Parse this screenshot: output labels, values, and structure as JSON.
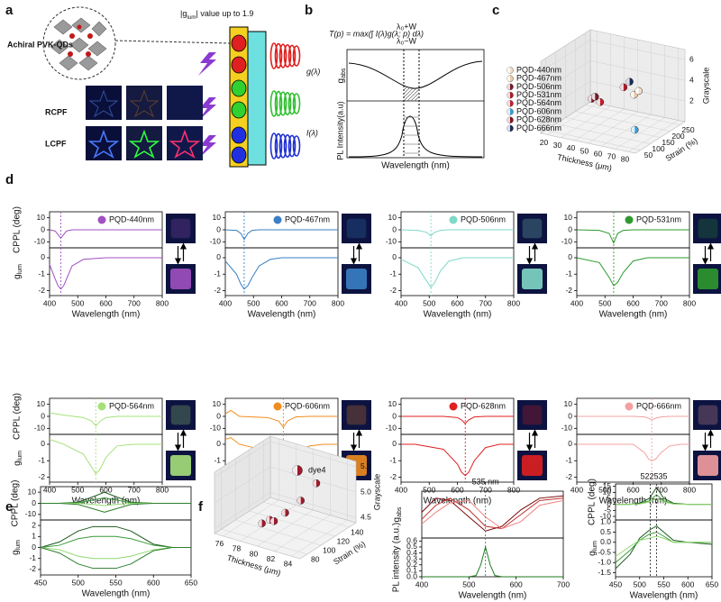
{
  "panel_labels": [
    "a",
    "b",
    "c",
    "d",
    "e",
    "f"
  ],
  "panel_a": {
    "title": [
      "|g",
      "lum",
      "| value up to 1.9"
    ],
    "qd_label": "Achiral PVK-QDs",
    "rows": [
      "RCPF",
      "LCPF"
    ]
  },
  "panel_b": {
    "formula": "T(p) = max(∫ I(λ)g(λ; p) dλ)",
    "upper": "λ₀+W",
    "lower": "λ₀−W",
    "g_label": "g(λ)",
    "i_label": "I(λ)",
    "gabs_label": [
      "g",
      "abs"
    ],
    "pl_label": "PL Intensity(a.u)",
    "xlabel": "Wavelength (nm)"
  },
  "panel_c": {
    "type": "scatter3d",
    "legend": [
      {
        "name": "PQD-440nm",
        "color": "#f3dcc8"
      },
      {
        "name": "PQD-467nm",
        "color": "#eccaa6"
      },
      {
        "name": "PQD-506nm",
        "color": "#7a1a2a"
      },
      {
        "name": "PQD-531nm",
        "color": "#b01a2a"
      },
      {
        "name": "PQD-564nm",
        "color": "#c02030"
      },
      {
        "name": "PQD-606nm",
        "color": "#3aa0d8"
      },
      {
        "name": "PQD-628nm",
        "color": "#8a1020"
      },
      {
        "name": "PQD-666nm",
        "color": "#1a2a5a"
      }
    ],
    "thickness": {
      "label": "Thickness (μm)",
      "lim": [
        15,
        85
      ],
      "ticks": [
        20,
        30,
        40,
        50,
        60,
        70,
        80
      ]
    },
    "strain": {
      "label": "Strain (%)",
      "lim": [
        25,
        275
      ],
      "ticks": [
        50,
        100,
        150,
        200,
        250
      ]
    },
    "grayscale": {
      "label": "Grayscale",
      "lim": [
        0,
        7
      ],
      "ticks": [
        2,
        4,
        6
      ]
    },
    "points": [
      {
        "t": 55,
        "s": 170,
        "g": 3.8,
        "color": "#b01a2a"
      },
      {
        "t": 58,
        "s": 180,
        "g": 4.3,
        "color": "#1a2a5a"
      },
      {
        "t": 40,
        "s": 110,
        "g": 3.0,
        "color": "#8a1020"
      },
      {
        "t": 45,
        "s": 120,
        "g": 2.7,
        "color": "#c02030"
      },
      {
        "t": 70,
        "s": 120,
        "g": 4.1,
        "color": "#eccaa6"
      },
      {
        "t": 72,
        "s": 130,
        "g": 4.4,
        "color": "#f3dcc8"
      },
      {
        "t": 75,
        "s": 90,
        "g": 1.2,
        "color": "#3aa0d8"
      },
      {
        "t": 42,
        "s": 115,
        "g": 3.2,
        "color": "#7a1a2a"
      }
    ]
  },
  "panel_d": {
    "type": "line",
    "xlim": [
      400,
      800
    ],
    "xticks": [
      400,
      500,
      600,
      700,
      800
    ],
    "xlabel": "Wavelength (nm)",
    "cppl": {
      "ylabel": "CPPL (deg)",
      "ylim": [
        -15,
        15
      ],
      "yticks": [
        -10,
        0,
        10
      ]
    },
    "glum": {
      "ylabel": [
        "g",
        "lum"
      ],
      "ylim": [
        -2.3,
        0.6
      ],
      "yticks": [
        -2,
        -1,
        0
      ]
    },
    "charts": [
      {
        "name": "PQD-440nm",
        "color": "#a050c0",
        "vline": 440,
        "x": [
          400,
          420,
          430,
          440,
          450,
          460,
          480,
          520,
          600,
          700,
          800
        ],
        "cppl": [
          0,
          -1,
          -4,
          -7,
          -4,
          -1,
          0,
          0,
          0,
          0,
          0
        ],
        "glum": [
          -0.4,
          -1.3,
          -1.7,
          -1.9,
          -1.7,
          -1.3,
          -0.5,
          -0.1,
          0,
          0,
          0
        ]
      },
      {
        "name": "PQD-467nm",
        "color": "#3a7fc4",
        "vline": 467,
        "x": [
          400,
          440,
          455,
          467,
          480,
          495,
          520,
          560,
          600,
          700,
          800
        ],
        "cppl": [
          0,
          -0.5,
          -3,
          -8,
          -3,
          -0.5,
          0,
          0,
          0,
          0,
          0
        ],
        "glum": [
          -0.2,
          -1.0,
          -1.6,
          -1.9,
          -1.7,
          -1.2,
          -0.5,
          -0.1,
          0,
          0,
          0
        ]
      },
      {
        "name": "PQD-506nm",
        "color": "#7fd8c8",
        "vline": 506,
        "x": [
          400,
          460,
          490,
          506,
          520,
          540,
          570,
          620,
          700,
          750,
          800
        ],
        "cppl": [
          0,
          -0.5,
          -2,
          -5,
          -2,
          -0.5,
          0,
          0,
          0,
          0,
          0
        ],
        "glum": [
          -0.1,
          -0.6,
          -1.4,
          -1.8,
          -1.5,
          -0.8,
          -0.2,
          0,
          0,
          0,
          0
        ]
      },
      {
        "name": "PQD-531nm",
        "color": "#2e9a2e",
        "vline": 531,
        "x": [
          400,
          480,
          515,
          531,
          545,
          565,
          600,
          650,
          700,
          750,
          800
        ],
        "cppl": [
          0,
          -0.5,
          -3,
          -11,
          -3,
          -0.5,
          0,
          0,
          0,
          0,
          0
        ],
        "glum": [
          0,
          -0.3,
          -1.2,
          -1.7,
          -1.5,
          -0.9,
          -0.2,
          0,
          0,
          0,
          0
        ]
      },
      {
        "name": "PQD-564nm",
        "color": "#a6e07a",
        "vline": 564,
        "x": [
          400,
          450,
          520,
          550,
          564,
          580,
          600,
          640,
          700,
          750,
          800
        ],
        "cppl": [
          3,
          1,
          -1,
          -4,
          -8,
          -4,
          -1,
          0,
          0,
          0,
          0
        ],
        "glum": [
          0.3,
          0,
          -0.6,
          -1.4,
          -1.8,
          -1.5,
          -0.8,
          -0.1,
          0,
          0,
          0
        ]
      },
      {
        "name": "PQD-606nm",
        "color": "#f08c1e",
        "vline": 606,
        "x": [
          400,
          420,
          450,
          550,
          590,
          606,
          620,
          650,
          700,
          750,
          800
        ],
        "cppl": [
          2,
          5,
          0,
          -1,
          -4,
          -9,
          -4,
          -0.5,
          0,
          0,
          0
        ],
        "glum": [
          0.3,
          0.4,
          0,
          -0.4,
          -1.5,
          -1.8,
          -1.5,
          -0.5,
          -0.1,
          0,
          0
        ]
      },
      {
        "name": "PQD-628nm",
        "color": "#e02020",
        "vline": 628,
        "x": [
          400,
          450,
          550,
          600,
          615,
          628,
          640,
          660,
          700,
          750,
          800
        ],
        "cppl": [
          0,
          0,
          0,
          -1,
          -3,
          -6,
          -3,
          -0.5,
          0,
          0,
          0
        ],
        "glum": [
          0,
          0,
          -0.3,
          -1.2,
          -1.7,
          -1.9,
          -1.7,
          -1.0,
          -0.2,
          0,
          0
        ]
      },
      {
        "name": "PQD-666nm",
        "color": "#f4a0a0",
        "vline": 666,
        "x": [
          400,
          500,
          600,
          640,
          655,
          666,
          680,
          700,
          730,
          770,
          800
        ],
        "cppl": [
          0,
          0,
          0,
          -0.5,
          -1.5,
          -3,
          -1.5,
          -0.5,
          0,
          0,
          0
        ],
        "glum": [
          0,
          0,
          0,
          -0.5,
          -0.9,
          -1.0,
          -0.9,
          -0.5,
          -0.1,
          0,
          0
        ]
      }
    ]
  },
  "panel_e": {
    "type": "line",
    "xlim": [
      450,
      650
    ],
    "xticks": [
      450,
      500,
      550,
      600,
      650
    ],
    "xlabel": "Wavelength (nm)",
    "x": [
      450,
      475,
      500,
      520,
      535,
      550,
      570,
      600,
      625,
      650
    ],
    "cppl": {
      "ylabel": "CPPL (deg)",
      "ylim": [
        -15,
        15
      ],
      "yticks": [
        -10,
        0,
        10
      ],
      "series": [
        {
          "color": "#1e5a1e",
          "values": [
            0,
            0,
            1,
            6,
            10,
            6,
            1,
            0,
            0,
            0
          ]
        },
        {
          "color": "#3a9a3a",
          "values": [
            0,
            0,
            0.5,
            3,
            5,
            3,
            0.5,
            0,
            0,
            0
          ]
        },
        {
          "color": "#90d870",
          "values": [
            0,
            0,
            0,
            -1,
            -2,
            -1,
            0,
            0,
            0,
            0
          ]
        },
        {
          "color": "#2e7d2e",
          "values": [
            0,
            0,
            -1,
            -5,
            -8,
            -5,
            -1,
            0,
            0,
            0
          ]
        }
      ]
    },
    "glum": {
      "ylabel": [
        "g",
        "lum"
      ],
      "ylim": [
        -2.5,
        2.5
      ],
      "yticks": [
        -2,
        -1,
        0,
        1,
        2
      ],
      "series": [
        {
          "color": "#1e5a1e",
          "values": [
            0,
            0.5,
            1.5,
            1.9,
            1.9,
            1.9,
            1.5,
            0.3,
            0,
            0
          ]
        },
        {
          "color": "#3a9a3a",
          "values": [
            0,
            0.2,
            0.8,
            1.0,
            1.0,
            1.0,
            0.8,
            0.2,
            0,
            0
          ]
        },
        {
          "color": "#90d870",
          "values": [
            0,
            -0.2,
            -0.8,
            -1.0,
            -1.0,
            -1.0,
            -0.8,
            -0.2,
            0,
            0
          ]
        },
        {
          "color": "#2e7d2e",
          "values": [
            0,
            -0.5,
            -1.5,
            -1.9,
            -1.9,
            -1.9,
            -1.5,
            -0.3,
            0,
            0
          ]
        }
      ]
    }
  },
  "panel_f": {
    "scatter": {
      "type": "scatter3d",
      "legend": [
        {
          "name": "dye4",
          "color": "#a01a2a"
        }
      ],
      "thickness": {
        "label": "Thickness (μm)",
        "lim": [
          75,
          85
        ],
        "ticks": [
          76,
          78,
          80,
          82,
          84
        ]
      },
      "strain": {
        "label": "Strain (%)",
        "lim": [
          70,
          150
        ],
        "ticks": [
          80,
          100,
          120,
          140
        ]
      },
      "grayscale": {
        "label": "Grayscale",
        "lim": [
          4.4,
          5.6
        ],
        "ticks": [
          4.5,
          {
            "value": 5,
            "label": "5.0"
          },
          5.5
        ]
      },
      "points": [
        {
          "t": 78.5,
          "s": 95,
          "g": 4.55,
          "color": "#a01a2a"
        },
        {
          "t": 79,
          "s": 100,
          "g": 4.6,
          "color": "#a01a2a"
        },
        {
          "t": 79.5,
          "s": 100,
          "g": 4.6,
          "color": "#a01a2a"
        },
        {
          "t": 80,
          "s": 110,
          "g": 4.7,
          "color": "#a01a2a"
        },
        {
          "t": 81,
          "s": 120,
          "g": 4.9,
          "color": "#a01a2a"
        },
        {
          "t": 82,
          "s": 130,
          "g": 5.2,
          "color": "#a01a2a"
        }
      ]
    },
    "absorption": {
      "type": "line",
      "xlim": [
        400,
        700
      ],
      "xticks": [
        400,
        500,
        600,
        700
      ],
      "xlabel": "Wavelength (nm)",
      "annotation": "535 nm",
      "vline": 535,
      "gabs": {
        "ylabel": [
          "g",
          "abs"
        ],
        "ylim": [
          0,
          1
        ],
        "x": [
          400,
          430,
          460,
          500,
          535,
          570,
          610,
          650,
          700
        ],
        "series": [
          {
            "color": "#7a0a0a",
            "values": [
              0.55,
              0.85,
              0.8,
              0.45,
              0.15,
              0.25,
              0.6,
              0.85,
              0.9
            ]
          },
          {
            "color": "#c03030",
            "values": [
              0.4,
              0.7,
              0.85,
              0.6,
              0.25,
              0.2,
              0.5,
              0.8,
              0.85
            ]
          },
          {
            "color": "#f08080",
            "values": [
              0.3,
              0.55,
              0.75,
              0.8,
              0.45,
              0.2,
              0.35,
              0.7,
              0.8
            ]
          }
        ]
      },
      "pl": {
        "ylabel": "PL intensity (a.u.)",
        "ylim": [
          0,
          0.65
        ],
        "yticks": [
          {
            "value": 0,
            "label": "0.0"
          },
          0.1,
          0.2,
          0.3,
          0.4,
          0.5,
          0.6
        ],
        "x": [
          400,
          500,
          515,
          525,
          535,
          545,
          555,
          570,
          700
        ],
        "series": [
          {
            "color": "#1e7a1e",
            "values": [
              0,
              0,
              0.02,
              0.2,
              0.5,
              0.2,
              0.02,
              0,
              0
            ]
          }
        ]
      }
    },
    "cpl": {
      "type": "line",
      "xlim": [
        450,
        650
      ],
      "xticks": [
        450,
        500,
        550,
        600,
        650
      ],
      "xlabel": "Wavelength (nm)",
      "annotation": "522535",
      "vlines": [
        522,
        535
      ],
      "x": [
        450,
        480,
        500,
        520,
        535,
        550,
        570,
        600,
        650
      ],
      "cppl": {
        "ylabel": "CPPL (deg)",
        "ylim": [
          -13,
          17
        ],
        "yticks": [
          -10,
          -5,
          0,
          5,
          10,
          15
        ],
        "series": [
          {
            "color": "#1e5a1e",
            "values": [
              0,
              0,
              1,
              5,
              14,
              5,
              1,
              0,
              0
            ]
          },
          {
            "color": "#3a9a3a",
            "values": [
              0,
              0,
              0.5,
              3,
              8,
              3,
              0.5,
              0,
              0
            ]
          },
          {
            "color": "#90d870",
            "values": [
              0,
              0,
              0.3,
              2,
              5,
              2,
              0.3,
              0,
              0
            ]
          }
        ]
      },
      "glum": {
        "ylabel": [
          "g",
          "lum"
        ],
        "ylim": [
          -1.7,
          1.1
        ],
        "yticks": [
          {
            "value": 1,
            "label": "1.0"
          },
          0.5,
          {
            "value": 0,
            "label": "0.0"
          },
          -0.5,
          {
            "value": -1,
            "label": "-1.0"
          },
          -1.5
        ],
        "series": [
          {
            "color": "#1e5a1e",
            "values": [
              -1.3,
              -0.6,
              0.2,
              0.6,
              0.8,
              0.5,
              0.1,
              0,
              -0.1
            ]
          },
          {
            "color": "#3a9a3a",
            "values": [
              -1.0,
              -0.4,
              0.1,
              0.4,
              0.5,
              0.3,
              0,
              0,
              0
            ]
          },
          {
            "color": "#90d870",
            "values": [
              -0.7,
              -0.2,
              0.1,
              0.2,
              0.3,
              0.2,
              0,
              0,
              0
            ]
          }
        ]
      }
    }
  }
}
